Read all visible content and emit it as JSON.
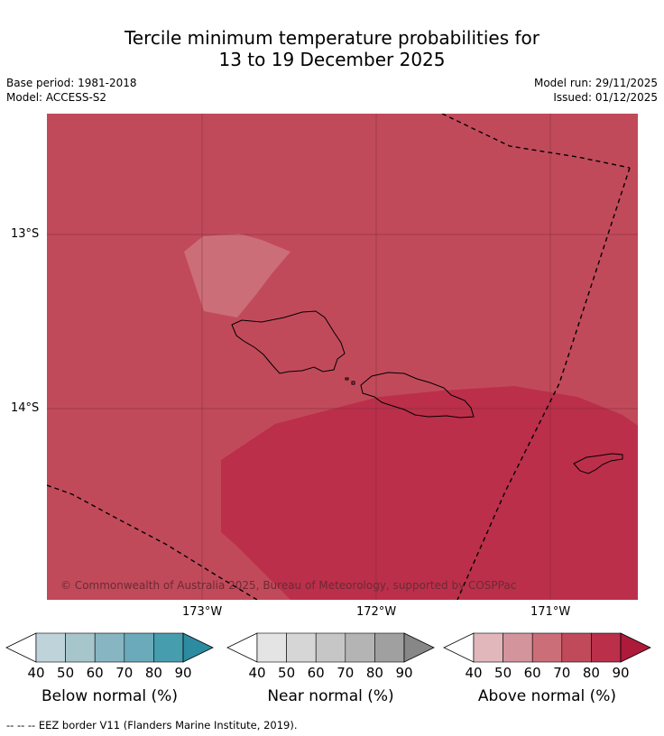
{
  "header": {
    "title_line1": "Tercile minimum temperature probabilities for",
    "title_line2": "13 to 19 December 2025",
    "base_period": "Base period: 1981-2018",
    "model": "Model: ACCESS-S2",
    "model_run": "Model run: 29/11/2025",
    "issued": "Issued: 01/12/2025"
  },
  "map": {
    "lat_labels": [
      "13°S",
      "14°S"
    ],
    "lon_labels": [
      "173°W",
      "172°W",
      "171°W"
    ],
    "copyright": "© Commonwealth of Australia 2025, Bureau of Meteorology, supported by COSPPac",
    "region_colors": {
      "background_above_70_80": "#c14a5a",
      "above_80_90": "#bb2f4a",
      "above_60_70": "#cc6e78"
    }
  },
  "legends": [
    {
      "caption": "Below normal (%)",
      "ticks": [
        "40",
        "50",
        "60",
        "70",
        "80",
        "90"
      ],
      "colors": [
        "#bfd4da",
        "#a6c6cc",
        "#87b5c2",
        "#6aaabb",
        "#469dae",
        "#2c8ba0"
      ]
    },
    {
      "caption": "Near normal (%)",
      "ticks": [
        "40",
        "50",
        "60",
        "70",
        "80",
        "90"
      ],
      "colors": [
        "#e4e4e4",
        "#d6d6d6",
        "#c6c6c6",
        "#b4b4b4",
        "#a0a0a0",
        "#878787"
      ]
    },
    {
      "caption": "Above normal (%)",
      "ticks": [
        "40",
        "50",
        "60",
        "70",
        "80",
        "90"
      ],
      "colors": [
        "#e1b7bc",
        "#d4949b",
        "#cc6e78",
        "#c14a5a",
        "#bb2f4a",
        "#ad1a3a"
      ]
    }
  ],
  "footer": {
    "eez_note": "--  --  -- EEZ border V11 (Flanders Marine Institute, 2019)."
  }
}
